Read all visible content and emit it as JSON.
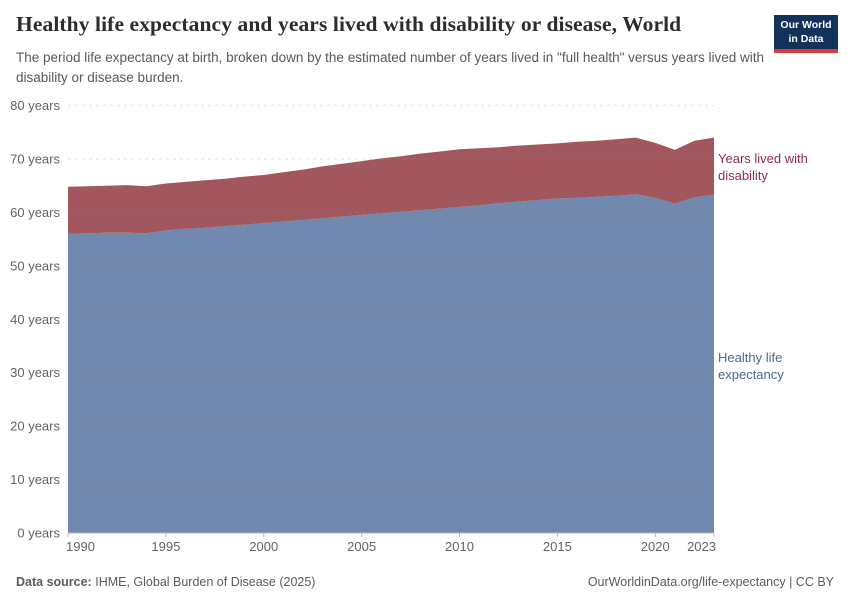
{
  "header": {
    "title": "Healthy life expectancy and years lived with disability or disease, World",
    "subtitle": "The period life expectancy at birth, broken down by the estimated number of years lived in \"full health\" versus years lived with disability or disease burden.",
    "logo": {
      "line1": "Our World",
      "line2": "in Data",
      "bg_color": "#12325a",
      "accent_color": "#d93a3f"
    }
  },
  "chart_data": {
    "type": "area",
    "stacked": true,
    "title": "Healthy life expectancy and years lived with disability or disease, World",
    "x": [
      1990,
      1991,
      1992,
      1993,
      1994,
      1995,
      1996,
      1997,
      1998,
      1999,
      2000,
      2001,
      2002,
      2003,
      2004,
      2005,
      2006,
      2007,
      2008,
      2009,
      2010,
      2011,
      2012,
      2013,
      2014,
      2015,
      2016,
      2017,
      2018,
      2019,
      2020,
      2021,
      2022,
      2023
    ],
    "series": [
      {
        "name": "Healthy life expectancy",
        "color": "#7189ae",
        "label_color": "#4a6794",
        "values": [
          56.0,
          56.1,
          56.2,
          56.2,
          56.1,
          56.6,
          56.9,
          57.1,
          57.4,
          57.7,
          58.0,
          58.3,
          58.6,
          58.9,
          59.2,
          59.5,
          59.8,
          60.1,
          60.4,
          60.7,
          61.0,
          61.3,
          61.7,
          62.0,
          62.3,
          62.6,
          62.7,
          62.9,
          63.1,
          63.4,
          62.7,
          61.6,
          62.8,
          63.3
        ]
      },
      {
        "name": "Years lived with disability",
        "color": "#a2575f",
        "label_color": "#8f2d45",
        "values": [
          8.8,
          8.8,
          8.8,
          8.9,
          8.8,
          8.8,
          8.8,
          8.9,
          8.9,
          9.0,
          9.0,
          9.2,
          9.4,
          9.7,
          9.9,
          10.1,
          10.3,
          10.4,
          10.6,
          10.7,
          10.8,
          10.7,
          10.5,
          10.5,
          10.4,
          10.3,
          10.5,
          10.5,
          10.6,
          10.6,
          10.3,
          10.1,
          10.6,
          10.7
        ]
      }
    ],
    "ylim": [
      0,
      80
    ],
    "yticks": [
      0,
      10,
      20,
      30,
      40,
      50,
      60,
      70,
      80
    ],
    "ytick_suffix": " years",
    "xticks": [
      1990,
      1995,
      2000,
      2005,
      2010,
      2015,
      2020,
      2023
    ],
    "grid": true,
    "legend_position": "right-annotations",
    "axis_color": "#bbbbbb",
    "tick_label_color": "#636363"
  },
  "footer": {
    "source_label": "Data source:",
    "source_text": "IHME, Global Burden of Disease (2025)",
    "credit": "OurWorldinData.org/life-expectancy | CC BY"
  }
}
